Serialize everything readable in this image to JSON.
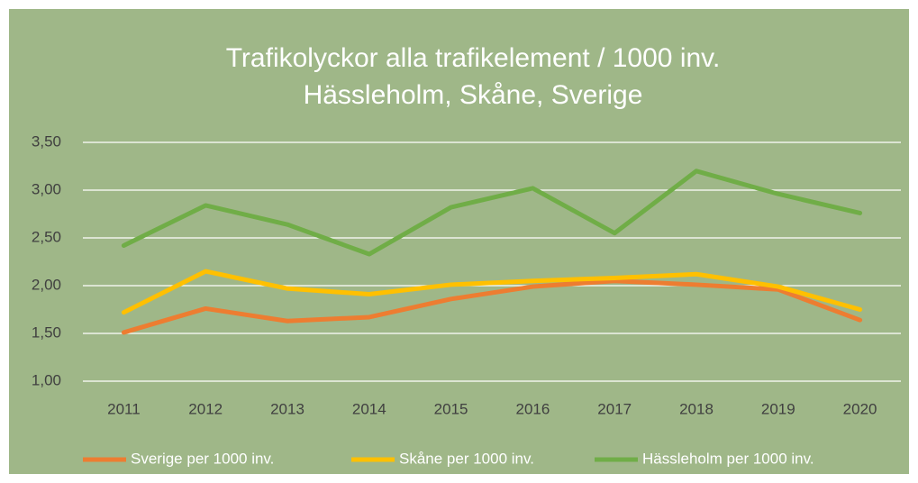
{
  "chart_data": {
    "type": "line",
    "title": "Trafikolyckor alla trafikelement  / 1000 inv.",
    "subtitle": "Hässleholm, Skåne, Sverige",
    "categories": [
      "2011",
      "2012",
      "2013",
      "2014",
      "2015",
      "2016",
      "2017",
      "2018",
      "2019",
      "2020"
    ],
    "series": [
      {
        "name": "Sverige per 1000 inv.",
        "color": "#ed7d31",
        "values": [
          1.51,
          1.76,
          1.63,
          1.67,
          1.86,
          1.99,
          2.05,
          2.01,
          1.96,
          1.64
        ]
      },
      {
        "name": "Skåne per 1000 inv.",
        "color": "#ffc000",
        "values": [
          1.72,
          2.15,
          1.97,
          1.91,
          2.01,
          2.05,
          2.08,
          2.12,
          1.99,
          1.75
        ]
      },
      {
        "name": "Hässleholm per 1000 inv.",
        "color": "#70ad47",
        "values": [
          2.42,
          2.84,
          2.64,
          2.33,
          2.82,
          3.02,
          2.55,
          3.2,
          2.96,
          2.76
        ]
      }
    ],
    "ylim": [
      1,
      3.5
    ],
    "yticks": [
      {
        "value": 1,
        "label": "1,00"
      },
      {
        "value": 1.5,
        "label": "1,50"
      },
      {
        "value": 2,
        "label": "2,00"
      },
      {
        "value": 2.5,
        "label": "2,50"
      },
      {
        "value": 3,
        "label": "3,00"
      },
      {
        "value": 3.5,
        "label": "3,50"
      }
    ],
    "grid": true,
    "legend": "bottom"
  }
}
